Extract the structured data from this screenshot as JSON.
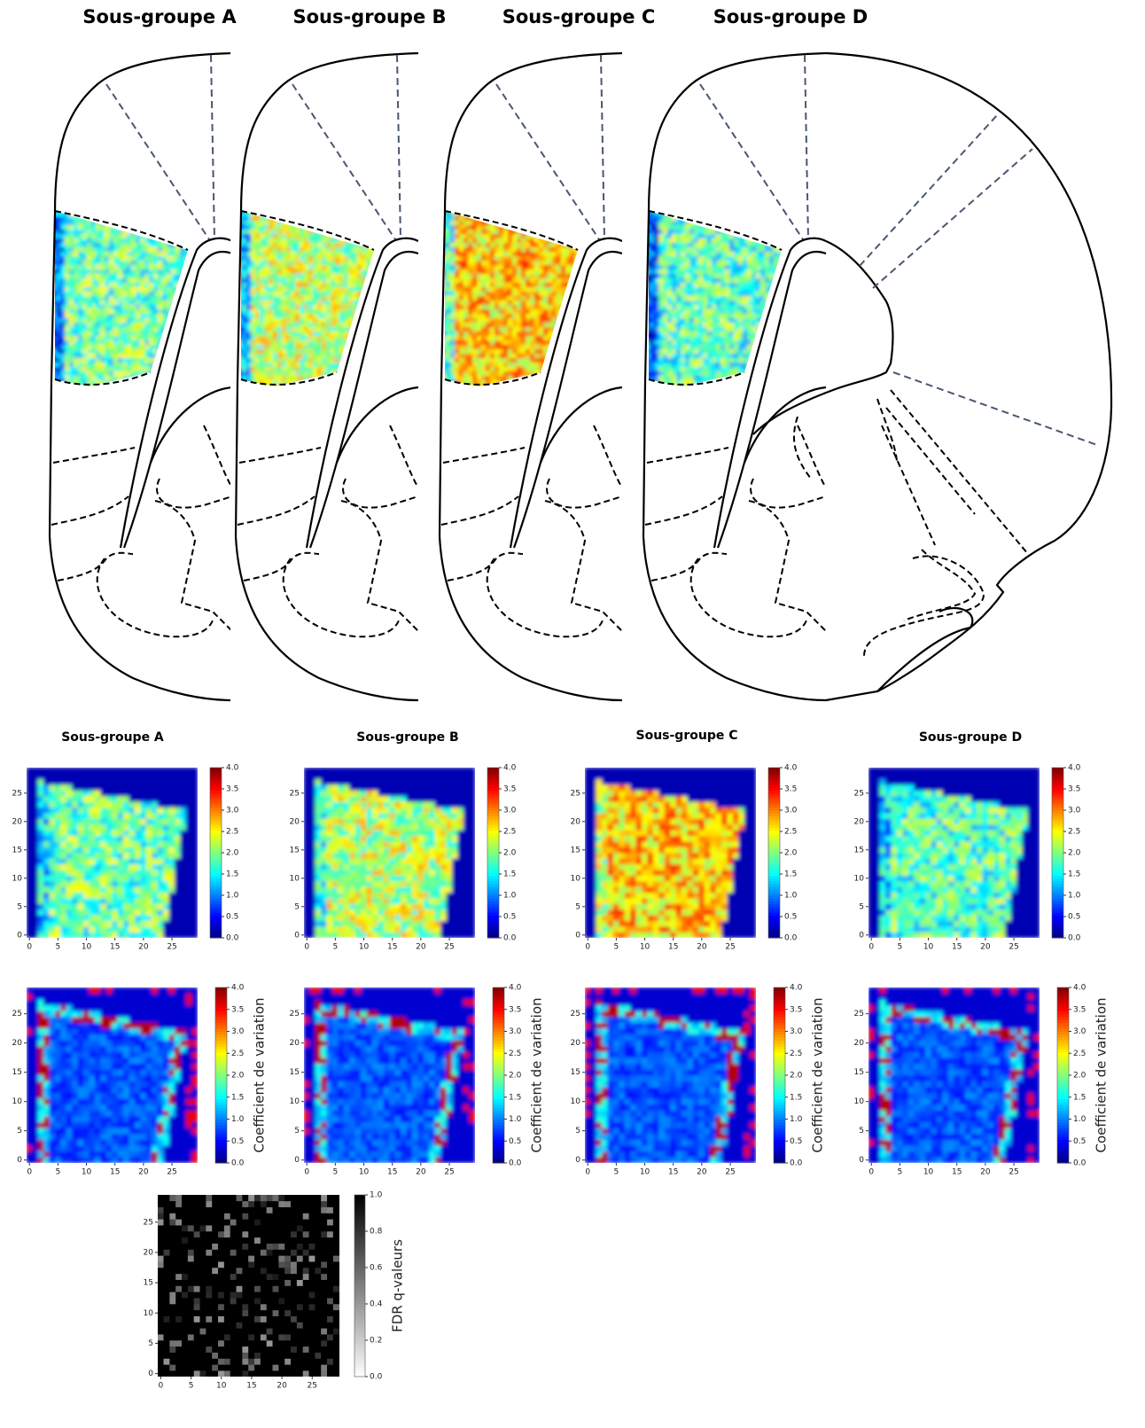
{
  "atlas_titles": [
    "Sous-groupe A",
    "Sous-groupe B",
    "Sous-groupe C",
    "Sous-groupe D"
  ],
  "panel_titles": [
    "Sous-groupe A",
    "Sous-groupe B",
    "Sous-groupe C",
    "Sous-groupe D"
  ],
  "heatmap_ticks": [
    0,
    5,
    10,
    15,
    20,
    25
  ],
  "mean_colorbar_ticks": [
    {
      "value": 0,
      "label": "0.0"
    },
    {
      "value": 0.5,
      "label": "0.5"
    },
    {
      "value": 1,
      "label": "1.0"
    },
    {
      "value": 1.5,
      "label": "1.5"
    },
    {
      "value": 2,
      "label": "2.0"
    },
    {
      "value": 2.5,
      "label": "2.5"
    },
    {
      "value": 3,
      "label": "3.0"
    },
    {
      "value": 3.5,
      "label": "3.5"
    },
    {
      "value": 4,
      "label": "4.0"
    }
  ],
  "cv_colorbar": {
    "label": "Coefficient de variation",
    "ticks": [
      {
        "value": 0,
        "label": "0.0"
      },
      {
        "value": 0.5,
        "label": "0.5"
      },
      {
        "value": 1,
        "label": "1.0"
      },
      {
        "value": 1.5,
        "label": "1.5"
      },
      {
        "value": 2,
        "label": "2.0"
      },
      {
        "value": 2.5,
        "label": "2.5"
      },
      {
        "value": 3,
        "label": "3.0"
      },
      {
        "value": 3.5,
        "label": "3.5"
      },
      {
        "value": 4,
        "label": "4.0"
      }
    ]
  },
  "fdr": {
    "label": "FDR q-valeurs",
    "ticks": [
      {
        "value": 0,
        "label": "0.0"
      },
      {
        "value": 0.2,
        "label": "0.2"
      },
      {
        "value": 0.4,
        "label": "0.4"
      },
      {
        "value": 0.6,
        "label": "0.6"
      },
      {
        "value": 0.8,
        "label": "0.8"
      },
      {
        "value": 1,
        "label": "1.0"
      }
    ]
  }
}
